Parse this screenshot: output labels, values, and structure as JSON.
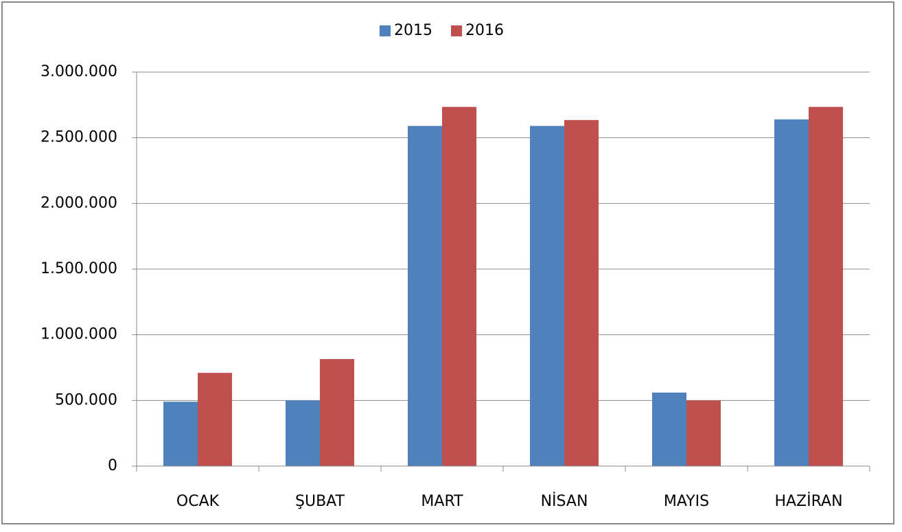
{
  "chart_data": {
    "type": "bar",
    "categories": [
      "OCAK",
      "ŞUBAT",
      "MART",
      "NİSAN",
      "MAYIS",
      "HAZİRAN"
    ],
    "series": [
      {
        "name": "2015",
        "color": "#4f81bd",
        "values": [
          490000,
          500000,
          2590000,
          2590000,
          560000,
          2640000
        ]
      },
      {
        "name": "2016",
        "color": "#c0504d",
        "values": [
          710000,
          815000,
          2735000,
          2635000,
          500000,
          2735000
        ]
      }
    ],
    "ylim": [
      0,
      3000000
    ],
    "yticks": [
      0,
      {
        "value": 500000,
        "label": "500.000"
      },
      {
        "value": 1000000,
        "label": "1.000.000"
      },
      {
        "value": 1500000,
        "label": "1.500.000"
      },
      {
        "value": 2000000,
        "label": "2.000.000"
      },
      {
        "value": 2500000,
        "label": "2.500.000"
      },
      {
        "value": 3000000,
        "label": "3.000.000"
      }
    ],
    "grid": true,
    "legend": "top"
  }
}
